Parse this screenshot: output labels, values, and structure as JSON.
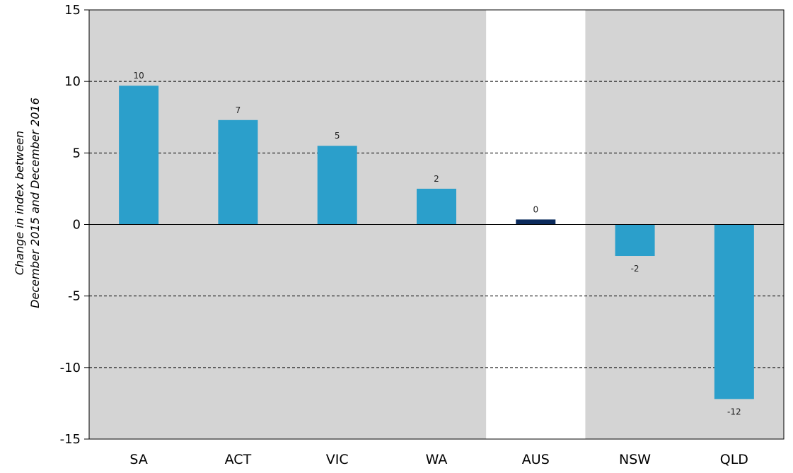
{
  "chart_data": {
    "type": "bar",
    "title": "",
    "xlabel": "",
    "ylabel_lines": [
      "Change in index between",
      "December 2015 and December 2016"
    ],
    "categories": [
      "SA",
      "ACT",
      "VIC",
      "WA",
      "AUS",
      "NSW",
      "QLD"
    ],
    "values": [
      9.7,
      7.3,
      5.5,
      2.5,
      0.35,
      -2.2,
      -12.2
    ],
    "data_labels": [
      "10",
      "7",
      "5",
      "2",
      "0",
      "-2",
      "-12"
    ],
    "ylim": [
      -15,
      15
    ],
    "yticks": [
      15,
      10,
      5,
      0,
      -5,
      -10,
      -15
    ],
    "ytick_labels": [
      "15",
      "10",
      "5",
      "0",
      "-5",
      "-10",
      "-15"
    ],
    "grid": "dashed horizontal",
    "highlight_category": "AUS",
    "colors": {
      "bar": "#2b9fcb",
      "highlight_bar": "#0b2a5c",
      "shaded_region": "#d4d4d4",
      "plot_background": "#ffffff",
      "grid": "#000000",
      "axis": "#000000"
    }
  }
}
